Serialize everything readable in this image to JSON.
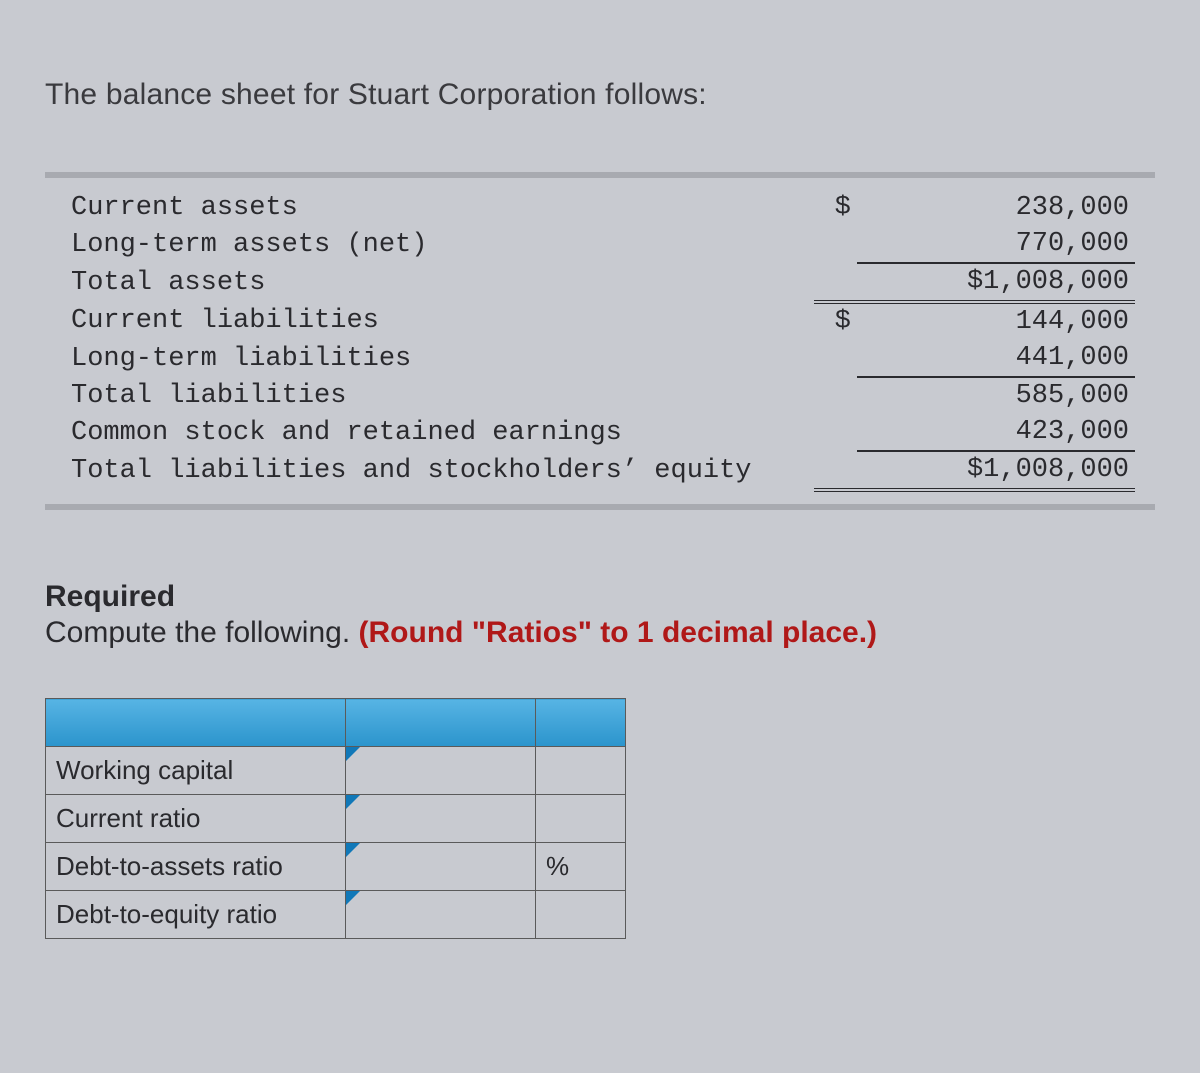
{
  "intro_text": "The balance sheet for Stuart Corporation follows:",
  "balance_sheet": {
    "rows": [
      {
        "label": "Current assets",
        "currency": "$",
        "value": "238,000",
        "indent": 0,
        "style": ""
      },
      {
        "label": "Long-term assets (net)",
        "currency": "",
        "value": "770,000",
        "indent": 0,
        "style": "underline-single"
      },
      {
        "label": "Total assets",
        "currency": "",
        "value": "$1,008,000",
        "indent": 0,
        "style": "underline-double"
      },
      {
        "label": "Current liabilities",
        "currency": "$",
        "value": "144,000",
        "indent": 0,
        "style": ""
      },
      {
        "label": "Long-term liabilities",
        "currency": "",
        "value": "441,000",
        "indent": 0,
        "style": "underline-single"
      },
      {
        "label": "Total liabilities",
        "currency": "",
        "value": "585,000",
        "indent": 1,
        "style": ""
      },
      {
        "label": "Common stock and retained earnings",
        "currency": "",
        "value": "423,000",
        "indent": 0,
        "style": "underline-single"
      },
      {
        "label": "Total liabilities and stockholders’ equity",
        "currency": "",
        "value": "$1,008,000",
        "indent": 0,
        "style": "underline-double"
      }
    ]
  },
  "required": {
    "heading": "Required",
    "text_pre": "Compute the following. ",
    "text_highlight": "(Round \"Ratios\" to 1 decimal place.)"
  },
  "answer_table": {
    "header_bg_start": "#57b4e4",
    "header_bg_end": "#2b94cc",
    "triangle_color": "#1178b8",
    "border_color": "#5a5a5a",
    "rows": [
      {
        "label": "Working capital",
        "unit": ""
      },
      {
        "label": "Current ratio",
        "unit": ""
      },
      {
        "label": "Debt-to-assets ratio",
        "unit": "%"
      },
      {
        "label": "Debt-to-equity ratio",
        "unit": ""
      }
    ]
  },
  "colors": {
    "page_bg": "#c8cad0",
    "text": "#2a2a2e",
    "red": "#b01818"
  }
}
